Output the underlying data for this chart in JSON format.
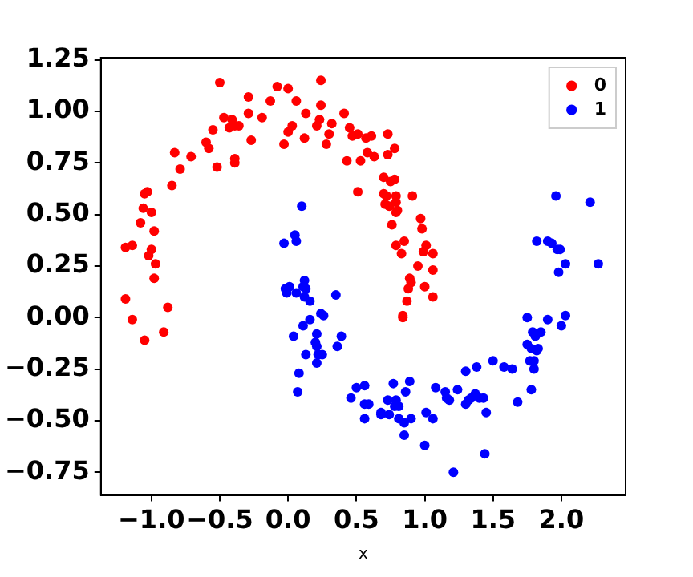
{
  "chart_data": {
    "type": "scatter",
    "xlabel": "x",
    "legend": "top right",
    "marker": "circle",
    "grid": false,
    "xlim": [
      -1.37,
      2.47
    ],
    "ylim": [
      -0.86,
      1.26
    ],
    "xticks": [
      {
        "value": -1,
        "label": "−1.0"
      },
      {
        "value": -0.5,
        "label": "−0.5"
      },
      {
        "value": 0,
        "label": "0.0"
      },
      {
        "value": 0.5,
        "label": "0.5"
      },
      {
        "value": 1,
        "label": "1.0"
      },
      {
        "value": 1.5,
        "label": "1.5"
      },
      {
        "value": 2,
        "label": "2.0"
      }
    ],
    "yticks": [
      {
        "value": -0.75,
        "label": "−0.75"
      },
      {
        "value": -0.5,
        "label": "−0.50"
      },
      {
        "value": -0.25,
        "label": "−0.25"
      },
      {
        "value": 0,
        "label": "0.00"
      },
      {
        "value": 0.25,
        "label": "0.25"
      },
      {
        "value": 0.5,
        "label": "0.50"
      },
      {
        "value": 0.75,
        "label": "0.75"
      },
      {
        "value": 1,
        "label": "1.00"
      },
      {
        "value": 1.25,
        "label": "1.25"
      }
    ],
    "series": [
      {
        "name": "0",
        "color": "#ff0000",
        "x": [
          -1.19,
          -1.19,
          -1.14,
          -1.14,
          -1.05,
          -0.91,
          -0.88,
          -1.08,
          -1.06,
          -1.0,
          -0.98,
          -1.05,
          -1.03,
          -1.0,
          -1.02,
          -0.97,
          -0.98,
          -0.85,
          -0.83,
          -0.79,
          -0.71,
          -0.6,
          -0.58,
          -0.52,
          -0.55,
          -0.5,
          -0.47,
          -0.43,
          -0.41,
          -0.39,
          -0.36,
          -0.39,
          -0.39,
          -0.29,
          -0.29,
          -0.27,
          -0.19,
          -0.13,
          -0.08,
          0.0,
          -0.03,
          0.0,
          0.03,
          0.06,
          0.12,
          0.13,
          0.21,
          0.23,
          0.24,
          0.24,
          0.28,
          0.3,
          0.32,
          0.41,
          0.43,
          0.45,
          0.47,
          0.51,
          0.51,
          0.53,
          0.58,
          0.57,
          0.61,
          0.63,
          0.73,
          0.73,
          0.78,
          0.75,
          0.78,
          0.7,
          0.7,
          0.72,
          0.71,
          0.74,
          0.79,
          0.79,
          0.8,
          0.79,
          0.76,
          0.91,
          0.79,
          0.85,
          0.83,
          0.97,
          0.98,
          1.01,
          0.99,
          1.06,
          1.06,
          0.95,
          0.89,
          0.9,
          0.88,
          1.0,
          1.06,
          0.87,
          0.84,
          0.84
        ],
        "values": [
          0.09,
          0.34,
          0.35,
          -0.01,
          -0.11,
          -0.07,
          0.05,
          0.46,
          0.53,
          0.51,
          0.42,
          0.6,
          0.61,
          0.33,
          0.3,
          0.26,
          0.19,
          0.64,
          0.8,
          0.72,
          0.78,
          0.85,
          0.82,
          0.73,
          0.91,
          1.14,
          0.97,
          0.92,
          0.96,
          0.93,
          0.93,
          0.77,
          0.75,
          0.99,
          1.07,
          0.86,
          0.97,
          1.05,
          1.12,
          1.11,
          0.84,
          0.9,
          0.93,
          1.05,
          0.87,
          0.99,
          0.93,
          0.96,
          1.15,
          1.03,
          0.84,
          0.89,
          0.94,
          0.99,
          0.76,
          0.92,
          0.88,
          0.61,
          0.89,
          0.76,
          0.8,
          0.87,
          0.88,
          0.78,
          0.89,
          0.79,
          0.82,
          0.66,
          0.67,
          0.68,
          0.6,
          0.59,
          0.55,
          0.54,
          0.59,
          0.56,
          0.52,
          0.51,
          0.45,
          0.59,
          0.35,
          0.37,
          0.31,
          0.48,
          0.43,
          0.35,
          0.32,
          0.31,
          0.23,
          0.25,
          0.19,
          0.17,
          0.14,
          0.15,
          0.1,
          0.08,
          0.01,
          0.0
        ]
      },
      {
        "name": "1",
        "color": "#0000ff",
        "x": [
          -0.03,
          0.05,
          0.06,
          0.1,
          -0.02,
          -0.01,
          0.01,
          0.06,
          0.11,
          0.12,
          0.13,
          0.12,
          0.16,
          0.35,
          0.24,
          0.26,
          0.16,
          0.11,
          0.04,
          0.21,
          0.2,
          0.21,
          0.22,
          0.13,
          0.25,
          0.21,
          0.39,
          0.36,
          0.08,
          0.07,
          0.46,
          0.5,
          0.56,
          0.56,
          0.59,
          0.56,
          0.68,
          0.68,
          0.73,
          0.77,
          0.79,
          0.78,
          0.74,
          0.81,
          0.81,
          0.86,
          0.89,
          0.85,
          0.9,
          0.85,
          1.0,
          1.01,
          1.06,
          1.08,
          1.15,
          1.16,
          1.18,
          1.21,
          1.24,
          1.3,
          1.3,
          1.32,
          1.34,
          1.37,
          1.38,
          1.4,
          1.43,
          1.45,
          1.44,
          1.5,
          1.58,
          1.64,
          1.68,
          1.75,
          1.75,
          1.78,
          1.79,
          1.81,
          1.77,
          1.8,
          1.8,
          1.78,
          1.82,
          1.83,
          1.85,
          1.9,
          1.82,
          1.9,
          1.93,
          1.97,
          1.99,
          1.98,
          2.03,
          2.0,
          2.03,
          1.96,
          2.21,
          2.27
        ],
        "values": [
          0.36,
          0.4,
          0.37,
          0.54,
          0.14,
          0.12,
          0.15,
          0.12,
          0.15,
          0.18,
          0.14,
          0.1,
          0.08,
          0.11,
          0.02,
          0.01,
          -0.01,
          -0.04,
          -0.09,
          -0.08,
          -0.12,
          -0.14,
          -0.18,
          -0.18,
          -0.18,
          -0.22,
          -0.09,
          -0.14,
          -0.27,
          -0.36,
          -0.39,
          -0.34,
          -0.33,
          -0.42,
          -0.42,
          -0.49,
          -0.46,
          -0.47,
          -0.4,
          -0.32,
          -0.4,
          -0.43,
          -0.47,
          -0.43,
          -0.49,
          -0.36,
          -0.31,
          -0.51,
          -0.49,
          -0.57,
          -0.62,
          -0.46,
          -0.49,
          -0.34,
          -0.36,
          -0.39,
          -0.4,
          -0.75,
          -0.35,
          -0.26,
          -0.42,
          -0.4,
          -0.39,
          -0.37,
          -0.24,
          -0.39,
          -0.39,
          -0.46,
          -0.66,
          -0.21,
          -0.24,
          -0.25,
          -0.41,
          0.0,
          -0.13,
          -0.35,
          -0.07,
          -0.09,
          -0.21,
          -0.21,
          -0.25,
          -0.15,
          -0.16,
          -0.15,
          -0.07,
          -0.01,
          0.37,
          0.37,
          0.36,
          0.33,
          0.33,
          0.22,
          0.26,
          -0.04,
          0.01,
          0.59,
          0.56,
          0.26
        ]
      }
    ]
  }
}
